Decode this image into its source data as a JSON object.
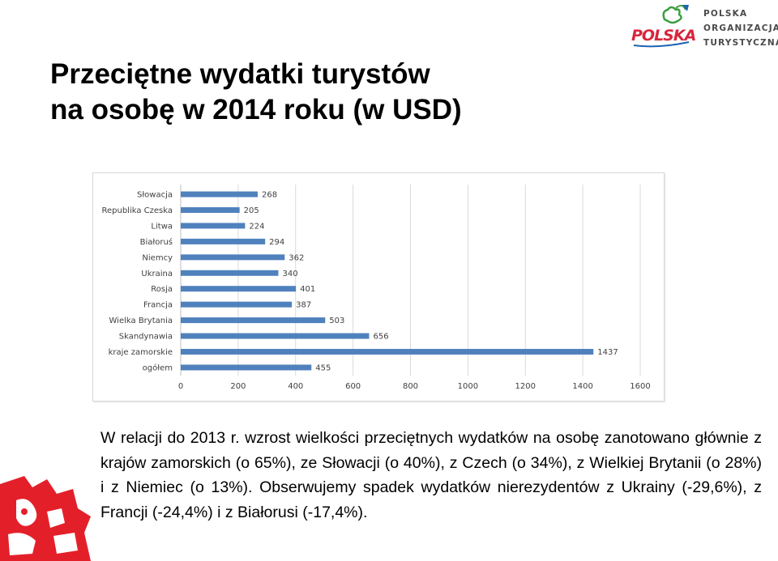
{
  "logo": {
    "brand_text": "POLSKA",
    "org_lines": [
      "POLSKA",
      "ORGANIZACJA",
      "TURYSTYCZNA"
    ]
  },
  "title_lines": [
    "Przeciętne wydatki turystów",
    "na osobę w 2014 roku (w USD)"
  ],
  "chart_data": {
    "type": "bar",
    "orientation": "horizontal",
    "categories": [
      "Słowacja",
      "Republika Czeska",
      "Litwa",
      "Białoruś",
      "Niemcy",
      "Ukraina",
      "Rosja",
      "Francja",
      "Wielka Brytania",
      "Skandynawia",
      "kraje zamorskie",
      "ogółem"
    ],
    "values": [
      268,
      205,
      224,
      294,
      362,
      340,
      401,
      387,
      503,
      656,
      1437,
      455
    ],
    "title": "",
    "xlabel": "",
    "ylabel": "",
    "xlim": [
      0,
      1600
    ],
    "xticks": [
      0,
      200,
      400,
      600,
      800,
      1000,
      1200,
      1400,
      1600
    ],
    "grid": "vertical",
    "legend": "none",
    "bar_color": "#4f81bd"
  },
  "description": "W relacji do 2013 r. wzrost wielkości przeciętnych wydatków na osobę zanotowano głównie z krajów zamorskich (o 65%), ze Słowacji (o 40%), z Czech (o 34%), z Wielkiej Brytanii (o 28%) i z Niemiec (o 13%). Obserwujemy spadek wydatków nierezydentów z Ukrainy (-29,6%), z Francji (-24,4%) i z Białorusi (-17,4%).",
  "colors": {
    "bar": "#4f81bd",
    "grid": "#d9d9d9",
    "logo_red": "#d7263d",
    "logo_green": "#3a9e3f",
    "logo_blue": "#1e63b0",
    "deco_red": "#e3202a"
  }
}
